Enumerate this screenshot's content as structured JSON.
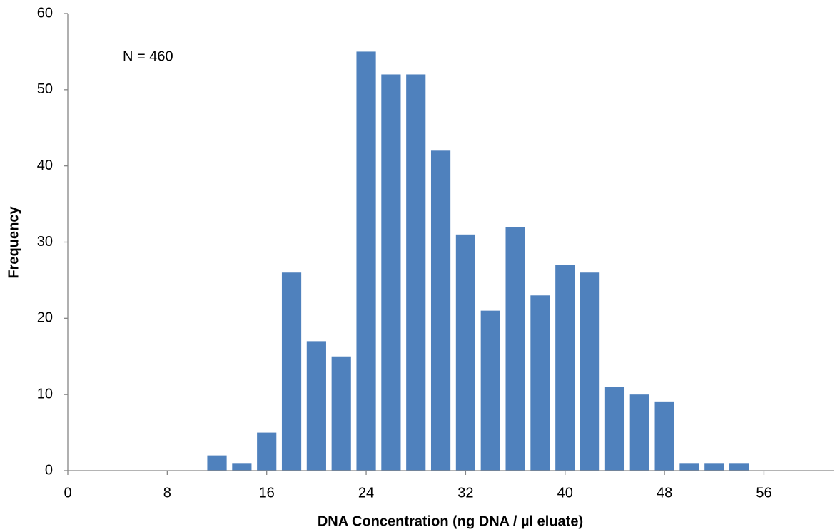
{
  "chart_data": {
    "type": "histogram",
    "x_label": "DNA Concentration (ng DNA / µl eluate)",
    "y_label": "Frequency",
    "annotation": "N = 460",
    "bins": [
      11,
      13,
      15,
      17,
      19,
      21,
      23,
      25,
      27,
      29,
      31,
      33,
      35,
      37,
      39,
      41,
      43,
      45,
      47,
      49,
      51,
      53,
      55
    ],
    "counts": [
      2,
      1,
      5,
      26,
      17,
      15,
      55,
      52,
      52,
      42,
      31,
      21,
      32,
      23,
      27,
      26,
      11,
      10,
      9,
      1,
      1,
      1
    ],
    "color": "#4f81bd",
    "xlim": [
      0,
      61.6
    ],
    "xticks": [
      0,
      8,
      16,
      24,
      32,
      40,
      48,
      56
    ],
    "ylim": [
      0,
      60
    ],
    "yticks": [
      0,
      10,
      20,
      30,
      40,
      50,
      60
    ],
    "grid": false
  }
}
